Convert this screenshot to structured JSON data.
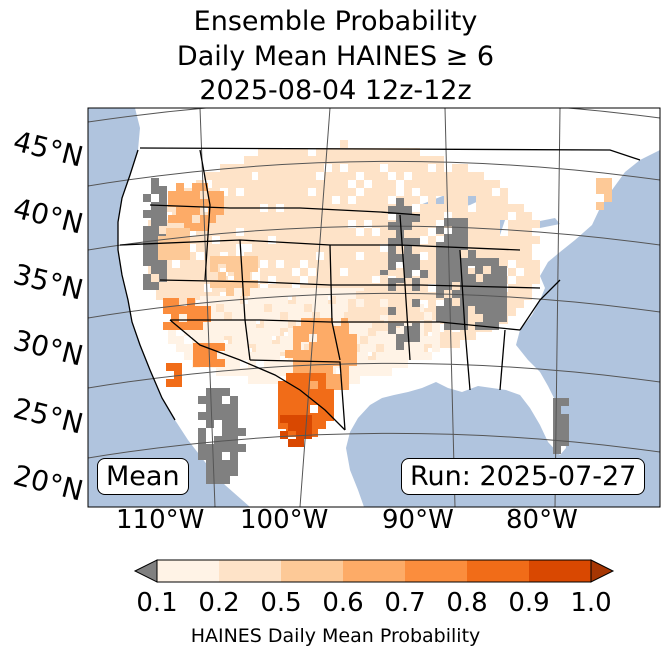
{
  "title": {
    "line1": "Ensemble Probability",
    "line2": "Daily Mean HAINES ≥ 6",
    "line3": "2025-08-04 12z-12z"
  },
  "map": {
    "projection": "lambert-conformal",
    "ocean_color": "#b0c4de",
    "land_color": "#ffffff",
    "missing_color": "#808080",
    "lat_labels": [
      "45°N",
      "40°N",
      "35°N",
      "30°N",
      "25°N",
      "20°N"
    ],
    "lon_labels": [
      "110°W",
      "100°W",
      "90°W",
      "80°W"
    ]
  },
  "labels": {
    "stat": "Mean",
    "run": "Run: 2025-07-27"
  },
  "colorbar": {
    "ticks": [
      "0.1",
      "0.2",
      "0.5",
      "0.6",
      "0.7",
      "0.8",
      "0.9",
      "1.0"
    ],
    "colors": [
      "#fff3e6",
      "#fee3c8",
      "#fdc997",
      "#fdab67",
      "#fb8d3d",
      "#f16c18",
      "#d94801"
    ],
    "under_color": "#808080",
    "over_color": "#a63603",
    "label": "HAINES Daily Mean Probability"
  }
}
